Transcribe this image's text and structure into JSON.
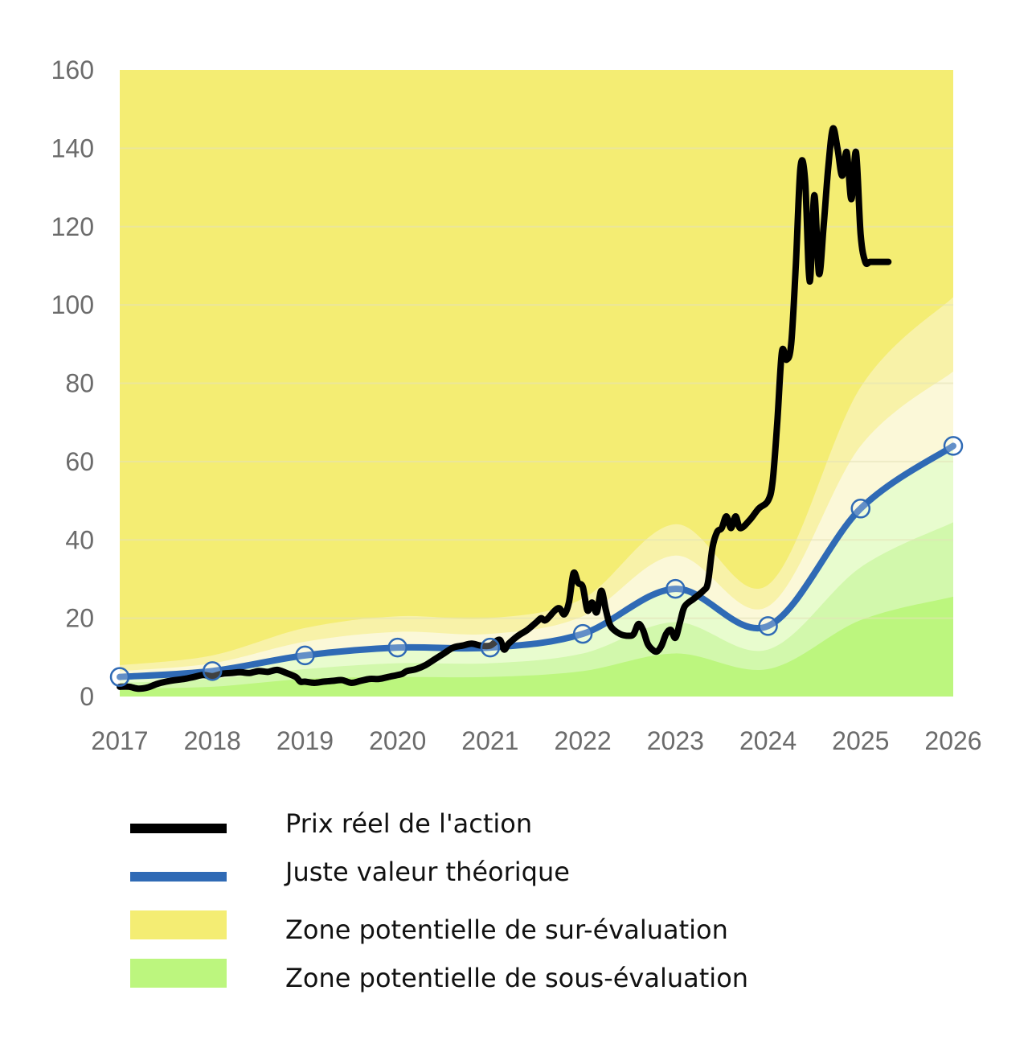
{
  "chart_data": {
    "type": "line",
    "title": "",
    "xlabel": "",
    "ylabel": "",
    "xlim": [
      2017,
      2026
    ],
    "ylim": [
      0,
      160
    ],
    "x_ticks": [
      "2017",
      "2018",
      "2019",
      "2020",
      "2021",
      "2022",
      "2023",
      "2024",
      "2025",
      "2026"
    ],
    "y_ticks": [
      "0",
      "20",
      "40",
      "60",
      "80",
      "100",
      "120",
      "140",
      "160"
    ],
    "grid": "horizontal",
    "legend_position": "bottom",
    "series": [
      {
        "name": "Prix réel de l'action",
        "color": "#000000",
        "x": [
          2017.0,
          2017.1,
          2017.2,
          2017.3,
          2017.4,
          2017.5,
          2017.6,
          2017.7,
          2017.8,
          2017.9,
          2018.0,
          2018.1,
          2018.2,
          2018.3,
          2018.4,
          2018.5,
          2018.6,
          2018.7,
          2018.8,
          2018.9,
          2018.95,
          2019.0,
          2019.1,
          2019.2,
          2019.3,
          2019.4,
          2019.5,
          2019.6,
          2019.7,
          2019.8,
          2019.9,
          2020.0,
          2020.05,
          2020.1,
          2020.2,
          2020.3,
          2020.4,
          2020.5,
          2020.6,
          2020.7,
          2020.8,
          2020.9,
          2021.0,
          2021.1,
          2021.15,
          2021.2,
          2021.3,
          2021.4,
          2021.5,
          2021.55,
          2021.6,
          2021.7,
          2021.75,
          2021.8,
          2021.85,
          2021.9,
          2021.95,
          2022.0,
          2022.05,
          2022.1,
          2022.15,
          2022.2,
          2022.25,
          2022.3,
          2022.4,
          2022.5,
          2022.55,
          2022.6,
          2022.65,
          2022.7,
          2022.75,
          2022.8,
          2022.85,
          2022.9,
          2022.95,
          2023.0,
          2023.05,
          2023.1,
          2023.2,
          2023.3,
          2023.35,
          2023.4,
          2023.45,
          2023.5,
          2023.55,
          2023.6,
          2023.65,
          2023.7,
          2023.8,
          2023.9,
          2024.0,
          2024.05,
          2024.1,
          2024.15,
          2024.2,
          2024.25,
          2024.3,
          2024.35,
          2024.4,
          2024.45,
          2024.5,
          2024.55,
          2024.6,
          2024.65,
          2024.7,
          2024.75,
          2024.8,
          2024.85,
          2024.9,
          2024.95,
          2025.0,
          2025.05,
          2025.1,
          2025.15,
          2025.2,
          2025.25,
          2025.3
        ],
        "y": [
          2.5,
          2.5,
          2.0,
          2.3,
          3.2,
          3.8,
          4.2,
          4.5,
          5.0,
          5.5,
          5.2,
          5.8,
          6.0,
          6.2,
          6.0,
          6.5,
          6.3,
          6.8,
          6.0,
          5.0,
          3.8,
          3.8,
          3.5,
          3.8,
          4.0,
          4.2,
          3.5,
          4.0,
          4.5,
          4.5,
          5.0,
          5.5,
          5.8,
          6.5,
          7.0,
          8.0,
          9.5,
          11.0,
          12.5,
          13.0,
          13.5,
          13.0,
          13.0,
          14.5,
          12.0,
          13.5,
          15.5,
          17.0,
          19.0,
          20.0,
          19.5,
          22.0,
          22.5,
          21.0,
          24.0,
          31.5,
          29.0,
          28.0,
          22.0,
          24.0,
          21.5,
          27.0,
          22.0,
          18.0,
          16.0,
          15.5,
          16.0,
          18.5,
          17.0,
          13.5,
          12.0,
          11.5,
          13.0,
          16.0,
          17.0,
          15.0,
          19.0,
          23.0,
          25.0,
          27.0,
          29.0,
          38.0,
          42.0,
          43.0,
          46.0,
          43.0,
          46.0,
          43.0,
          45.0,
          48.0,
          50.0,
          55.0,
          70.0,
          88.0,
          86.0,
          90.0,
          110.0,
          135.0,
          132.0,
          106.0,
          128.0,
          108.0,
          120.0,
          135.0,
          145.0,
          140.0,
          133.0,
          139.0,
          127.0,
          139.0,
          118.0,
          111.0,
          111.0,
          111.0,
          111.0,
          111.0,
          111.0
        ]
      },
      {
        "name": "Juste valeur théorique",
        "color": "#2f6ab5",
        "x": [
          2017,
          2018,
          2019,
          2020,
          2021,
          2022,
          2023,
          2024,
          2025,
          2026
        ],
        "y": [
          5.0,
          6.5,
          10.5,
          12.5,
          12.5,
          16.0,
          27.5,
          18.0,
          48.0,
          64.0
        ]
      }
    ],
    "bands": {
      "x": [
        2017,
        2018,
        2019,
        2020,
        2021,
        2022,
        2023,
        2024,
        2025,
        2026
      ],
      "over_outer": [
        8.0,
        10.5,
        17.5,
        20.5,
        20.0,
        25.0,
        44.0,
        28.5,
        79.0,
        102.0
      ],
      "over_inner": [
        6.5,
        8.5,
        14.0,
        16.5,
        16.0,
        20.5,
        36.0,
        23.0,
        64.0,
        83.0
      ],
      "under_inner": [
        3.5,
        4.5,
        7.0,
        8.5,
        8.5,
        11.0,
        19.0,
        12.0,
        33.0,
        44.5
      ],
      "under_outer": [
        2.0,
        2.5,
        4.5,
        5.0,
        5.0,
        6.5,
        11.0,
        7.0,
        19.5,
        25.5
      ]
    },
    "colors": {
      "over_zone": "#f4ed73",
      "over_light": "#f8f2a8",
      "over_lighter": "#fbf8d8",
      "under_lighter": "#e8fcce",
      "under_light": "#d2f8ac",
      "under_zone": "#bcf67e",
      "grid": "#e4e2b8"
    }
  },
  "legend": [
    {
      "label": "Prix réel de l'action",
      "kind": "line",
      "color": "#000000"
    },
    {
      "label": "Juste valeur théorique",
      "kind": "line",
      "color": "#2f6ab5"
    },
    {
      "label": "Zone potentielle de sur-évaluation",
      "kind": "box",
      "color": "#f4ed73"
    },
    {
      "label": "Zone potentielle de sous-évaluation",
      "kind": "box",
      "color": "#bcf67e"
    }
  ]
}
